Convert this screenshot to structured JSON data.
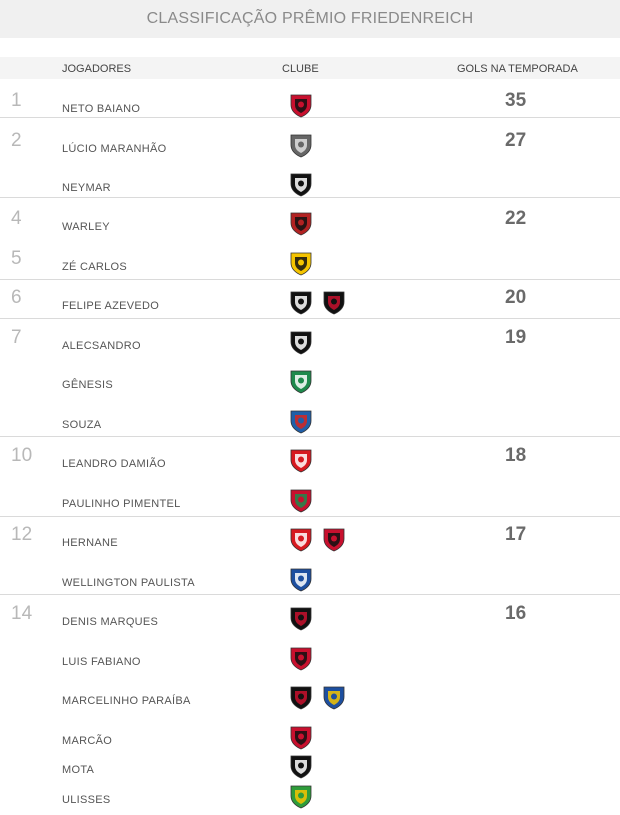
{
  "title": "CLASSIFICAÇÃO PRÊMIO FRIEDENREICH",
  "headers": {
    "player": "JOGADORES",
    "club": "CLUBE",
    "goals": "GOLS NA TEMPORADA"
  },
  "rows": [
    {
      "rank": "1",
      "player": "NETO BAIANO",
      "goals": "35",
      "clubs": [
        {
          "icon": "vitoria-crest-icon",
          "colors": [
            "#c8102e",
            "#111111"
          ]
        }
      ]
    },
    {
      "rank": "2",
      "player": "LÚCIO MARANHÃO",
      "goals": "27",
      "clubs": [
        {
          "icon": "botafogo-sp-crest-icon",
          "colors": [
            "#666666",
            "#e0e0e0"
          ]
        }
      ]
    },
    {
      "rank": "",
      "player": "NEYMAR",
      "goals": "",
      "clubs": [
        {
          "icon": "santos-crest-icon",
          "colors": [
            "#111111",
            "#ffffff"
          ]
        }
      ]
    },
    {
      "rank": "4",
      "player": "WARLEY",
      "goals": "22",
      "clubs": [
        {
          "icon": "campinense-crest-icon",
          "colors": [
            "#b22222",
            "#111111"
          ]
        }
      ]
    },
    {
      "rank": "5",
      "player": "ZÉ CARLOS",
      "goals": "",
      "clubs": [
        {
          "icon": "criciuma-crest-icon",
          "colors": [
            "#f5c400",
            "#111111"
          ]
        }
      ]
    },
    {
      "rank": "6",
      "player": "FELIPE AZEVEDO",
      "goals": "20",
      "clubs": [
        {
          "icon": "ceara-crest-icon",
          "colors": [
            "#111111",
            "#ffffff"
          ]
        },
        {
          "icon": "sport-crest-icon",
          "colors": [
            "#111111",
            "#c8102e"
          ]
        }
      ]
    },
    {
      "rank": "7",
      "player": "ALECSANDRO",
      "goals": "19",
      "clubs": [
        {
          "icon": "vasco-crest-icon",
          "colors": [
            "#111111",
            "#ffffff"
          ]
        }
      ]
    },
    {
      "rank": "",
      "player": "GÊNESIS",
      "goals": "",
      "clubs": [
        {
          "icon": "guarani-crest-icon",
          "colors": [
            "#1e8a4c",
            "#ffffff"
          ]
        }
      ]
    },
    {
      "rank": "",
      "player": "SOUZA",
      "goals": "",
      "clubs": [
        {
          "icon": "bahia-crest-icon",
          "colors": [
            "#1f5fa8",
            "#d7261e"
          ]
        }
      ]
    },
    {
      "rank": "10",
      "player": "LEANDRO DAMIÃO",
      "goals": "18",
      "clubs": [
        {
          "icon": "internacional-crest-icon",
          "colors": [
            "#d71920",
            "#ffffff"
          ]
        }
      ]
    },
    {
      "rank": "",
      "player": "PAULINHO PIMENTEL",
      "goals": "",
      "clubs": [
        {
          "icon": "portuguesa-crest-icon",
          "colors": [
            "#c8102e",
            "#1e8a4c"
          ]
        }
      ]
    },
    {
      "rank": "12",
      "player": "HERNANE",
      "goals": "17",
      "clubs": [
        {
          "icon": "mogi-mirim-crest-icon",
          "colors": [
            "#d71920",
            "#ffffff"
          ]
        },
        {
          "icon": "flamengo-crest-icon",
          "colors": [
            "#c8102e",
            "#111111"
          ]
        }
      ]
    },
    {
      "rank": "",
      "player": "WELLINGTON PAULISTA",
      "goals": "",
      "clubs": [
        {
          "icon": "cruzeiro-crest-icon",
          "colors": [
            "#1d4fa0",
            "#ffffff"
          ]
        }
      ]
    },
    {
      "rank": "14",
      "player": "DENIS MARQUES",
      "goals": "16",
      "clubs": [
        {
          "icon": "santa-cruz-crest-icon",
          "colors": [
            "#111111",
            "#c8102e"
          ]
        }
      ]
    },
    {
      "rank": "",
      "player": "LUIS FABIANO",
      "goals": "",
      "clubs": [
        {
          "icon": "sao-paulo-crest-icon",
          "colors": [
            "#c8102e",
            "#111111"
          ]
        }
      ]
    },
    {
      "rank": "",
      "player": "MARCELINHO PARAÍBA",
      "goals": "",
      "clubs": [
        {
          "icon": "sport-crest-icon",
          "colors": [
            "#111111",
            "#c8102e"
          ]
        },
        {
          "icon": "sao-caetano-crest-icon",
          "colors": [
            "#1d4fa0",
            "#f5c400"
          ]
        }
      ]
    },
    {
      "rank": "",
      "player": "MARCÃO",
      "goals": "",
      "clubs": [
        {
          "icon": "atletico-go-crest-icon",
          "colors": [
            "#c8102e",
            "#111111"
          ]
        }
      ]
    },
    {
      "rank": "",
      "player": "MOTA",
      "goals": "",
      "clubs": [
        {
          "icon": "ceara-crest-icon",
          "colors": [
            "#111111",
            "#ffffff"
          ]
        }
      ]
    },
    {
      "rank": "",
      "player": "ULISSES",
      "goals": "",
      "clubs": [
        {
          "icon": "america-rn-crest-icon",
          "colors": [
            "#2e9c3a",
            "#f5c400"
          ]
        }
      ]
    }
  ]
}
